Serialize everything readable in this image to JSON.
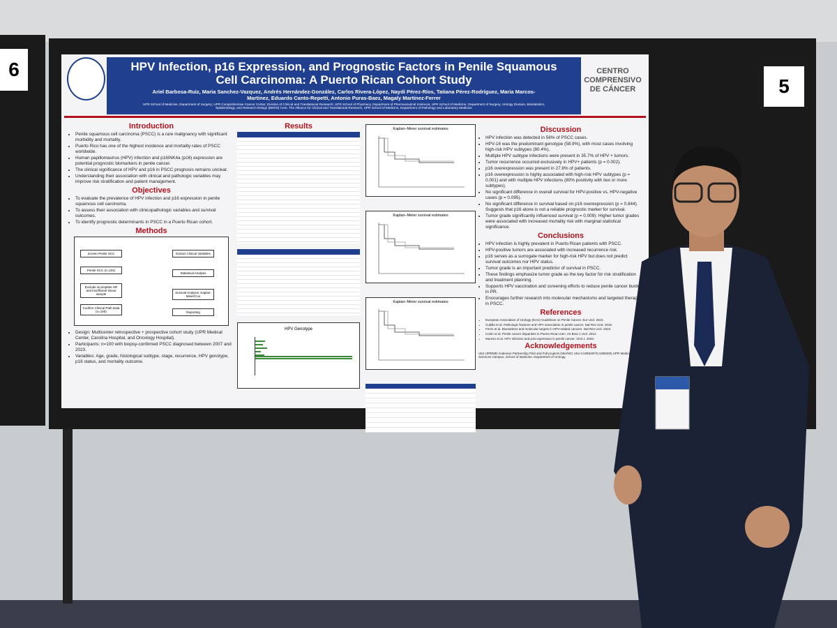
{
  "board_numbers": [
    "6",
    "5"
  ],
  "poster": {
    "title": "HPV Infection, p16 Expression, and Prognostic Factors in Penile Squamous Cell Carcinoma: A Puerto Rican Cohort Study",
    "authors": "Ariel Barbosa-Ruiz, Maria Sanchez-Vazquez, Andrés Hernández-González, Carlos Rivera-López, Naydi Pérez-Ríos, Tatiana Pérez-Rodríguez, Maria Marcos-Martinez, Eduardo Canto-Repetti, Antonio Puras-Baez, Magaly Martinez-Ferrer",
    "affiliations": "UPR School of Medicine, Department of Surgery; UPR Comprehensive Cancer Center, Division of Clinical and Translational Research; UPR School of Pharmacy, Department of Pharmaceutical Sciences; UPR School of Medicine, Department of Surgery, Urology Division, Biostatistics, Epidemiology, and Research Design (BERD) Core, The Alliance for Clinical and Translational Research, UPR School of Medicine, Department of Pathology and Laboratory Medicine",
    "logo_text": "Centro Comprensivo de Cáncer",
    "introduction": {
      "heading": "Introduction",
      "bullets": [
        "Penile squamous cell carcinoma (PSCC) is a rare malignancy with significant morbidity and mortality.",
        "Puerto Rico has one of the highest incidence and mortality rates of PSCC worldwide.",
        "Human papillomavirus (HPV) infection and p16INK4a (p16) expression are potential prognostic biomarkers in penile cancer.",
        "The clinical significance of HPV and p16 in PSCC prognosis remains unclear.",
        "Understanding their association with clinical and pathologic variables may improve risk stratification and patient management."
      ]
    },
    "objectives": {
      "heading": "Objectives",
      "bullets": [
        "To evaluate the prevalence of HPV infection and p16 expression in penile squamous cell carcinoma.",
        "To assess their association with clinicopathologic variables and survival outcomes.",
        "To identify prognostic determinants in PSCC in a Puerto Rican cohort."
      ]
    },
    "methods": {
      "heading": "Methods",
      "flow": [
        "Screen Penile SCC",
        "Penile SCC (n=104)",
        "Exclude incomplete HR and insufficient tissue sample",
        "Confirm Clinical Path Data (n=100)",
        "Extract Clinical Variables",
        "Statistical Analysis",
        "Survival Analysis: Kaplan-Meier/Cox",
        "Reporting"
      ],
      "bullets": [
        "Design: Multicenter retrospective + prospective cohort study (UPR Medical Center, Carolina Hospital, and Oncology Hospital).",
        "Participants: n=100 with biopsy-confirmed PSCC diagnosed between 2007 and 2023.",
        "Variables: Age, grade, histological subtype, stage, recurrence, HPV genotype, p16 status, and mortality outcome."
      ]
    },
    "results": {
      "heading": "Results",
      "figure_title": "HPV Genotype",
      "km_title": "Kaplan–Meier survival estimates"
    },
    "discussion": {
      "heading": "Discussion",
      "bullets": [
        "HPV infection was detected in 56% of PSCC cases.",
        "HPV-16 was the predominant genotype (58.9%), with most cases involving high-risk HPV subtypes (80.4%).",
        "Multiple HPV subtype infections were present in 35.7% of HPV + tumors.",
        "Tumor recurrence occurred exclusively in HPV+ patients (p = 0.002).",
        "p16 overexpression was present in 27.8% of patients.",
        "p16 overexpression is highly associated with high-risk HPV subtypes (p = 0.001) and with multiple HPV infections (80% positivity with two or more subtypes).",
        "No significant difference in overall survival for HPV-positive vs. HPV-negative cases (p = 0.095).",
        "No significant difference in survival based on p16 overexpression (p = 0.844). Suggests that p16 alone is not a reliable prognostic marker for survival.",
        "Tumor grade significantly influenced survival (p = 0.009): Higher tumor grades were associated with increased mortality risk with marginal statistical significance."
      ]
    },
    "conclusions": {
      "heading": "Conclusions",
      "bullets": [
        "HPV infection is highly prevalent in Puerto Rican patients with PSCC.",
        "HPV-positive tumors are associated with increased recurrence risk.",
        "p16 serves as a surrogate marker for high-risk HPV but does not predict survival outcomes nor HPV status.",
        "Tumor grade is an important predictor of survival in PSCC.",
        "These findings emphasize tumor grade as the key factor for risk stratification and treatment planning.",
        "Supports HPV vaccination and screening efforts to reduce penile cancer burden in PR.",
        "Encourages further research into molecular mechanisms and targeted therapies in PSCC."
      ]
    },
    "references": {
      "heading": "References",
      "items": [
        "European Association of Urology (EAU) Guidelines on Penile Cancer. Eur Urol. 2023.",
        "Cubilla et al. Pathologic features and HPV association in penile cancer. Nat Rev Urol. 2019.",
        "Ferris et al. Biomarkers and molecular targets in HPV-related cancers. Nat Rev Urol. 2023.",
        "Colón et al. Penile cancer disparities in Puerto Rican men. Int Braz J Urol. 2012.",
        "Muresu et al. HPV infection and p16 expression in penile cancer. Virol J. 2020."
      ]
    },
    "acknowledgements": {
      "heading": "Acknowledgements",
      "text": "U54 UPR/MD Anderson Partnership Pilot and Full projects (NIH/NCI U54 CA096297/CA096300) UPR Medical Sciences Campus, School of Medicine, Department of Urology."
    }
  }
}
